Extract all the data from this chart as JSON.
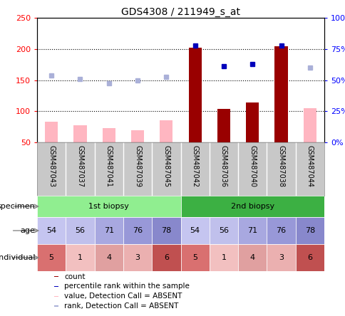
{
  "title": "GDS4308 / 211949_s_at",
  "samples": [
    "GSM487043",
    "GSM487037",
    "GSM487041",
    "GSM487039",
    "GSM487045",
    "GSM487042",
    "GSM487036",
    "GSM487040",
    "GSM487038",
    "GSM487044"
  ],
  "count_values": [
    null,
    null,
    null,
    null,
    null,
    202,
    104,
    114,
    204,
    null
  ],
  "count_absent_values": [
    83,
    78,
    73,
    70,
    85,
    null,
    null,
    null,
    null,
    105
  ],
  "rank_values": [
    null,
    null,
    null,
    null,
    null,
    205,
    172,
    176,
    205,
    null
  ],
  "rank_absent_values": [
    157,
    152,
    145,
    150,
    155,
    null,
    null,
    null,
    null,
    170
  ],
  "ylim": [
    50,
    250
  ],
  "yticks": [
    50,
    100,
    150,
    200,
    250
  ],
  "ytick_right": [
    "0%",
    "25%",
    "50%",
    "75%",
    "100%"
  ],
  "ytick_right_vals": [
    50,
    100,
    150,
    200,
    250
  ],
  "specimen_labels": [
    "1st biopsy",
    "2nd biopsy"
  ],
  "specimen_colors": [
    "#90ee90",
    "#3cb043"
  ],
  "age_values": [
    54,
    56,
    71,
    76,
    78,
    54,
    56,
    71,
    76,
    78
  ],
  "age_colors": [
    "#c5c5f0",
    "#c0c0ec",
    "#a8a8e0",
    "#9898d8",
    "#8888cc",
    "#c5c5f0",
    "#c0c0ec",
    "#a8a8e0",
    "#9898d8",
    "#8888cc"
  ],
  "individual_values": [
    5,
    1,
    4,
    3,
    6,
    5,
    1,
    4,
    3,
    6
  ],
  "individual_colors": [
    "#d97070",
    "#f2c0c0",
    "#e0a0a0",
    "#ebb0b0",
    "#c05050",
    "#d97070",
    "#f2c0c0",
    "#e0a0a0",
    "#ebb0b0",
    "#c05050"
  ],
  "bar_color_dark": "#990000",
  "bar_color_absent": "#ffb6c1",
  "rank_color_dark": "#0000bb",
  "rank_color_absent": "#aab0d8",
  "xlabels_bg": "#c8c8c8",
  "grid_dotted_vals": [
    100,
    150,
    200
  ]
}
